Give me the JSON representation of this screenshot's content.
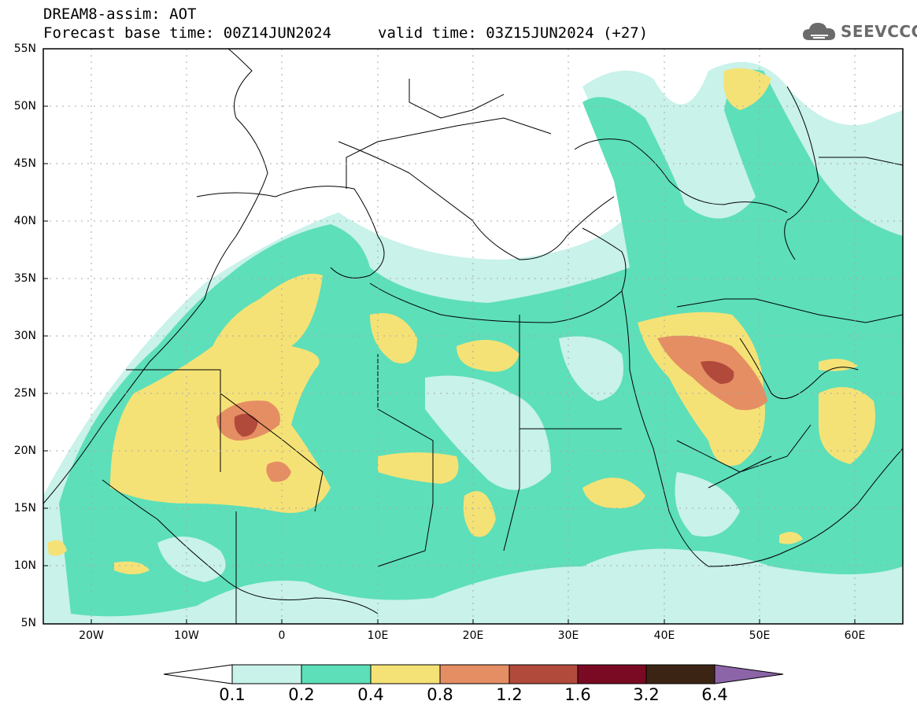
{
  "header": {
    "model_title": "DREAM8-assim: AOT",
    "base_time": "Forecast base time: 00Z14JUN2024",
    "valid_time": "valid time: 03Z15JUN2024 (+27)"
  },
  "logo": {
    "text": "SEEVCCC",
    "icon": "cloud-icon"
  },
  "axes": {
    "lat_labels": [
      "55N",
      "50N",
      "45N",
      "40N",
      "35N",
      "30N",
      "25N",
      "20N",
      "15N",
      "10N",
      "5N"
    ],
    "lon_labels": [
      "20W",
      "10W",
      "0",
      "10E",
      "20E",
      "30E",
      "40E",
      "50E",
      "60E"
    ]
  },
  "colorbar": {
    "labels": [
      "0.1",
      "0.2",
      "0.4",
      "0.8",
      "1.2",
      "1.6",
      "3.2",
      "6.4"
    ],
    "colors": [
      "#ffffff",
      "#c8f2ea",
      "#5ddfb9",
      "#f5e276",
      "#e58e63",
      "#b24a3c",
      "#7a0a23",
      "#3c2414",
      "#8c64a8"
    ]
  },
  "colors": {
    "very_low": "#c8f2ea",
    "low": "#5ddfb9",
    "moderate": "#f5e276",
    "high": "#e58e63",
    "very_high": "#b24a3c"
  }
}
